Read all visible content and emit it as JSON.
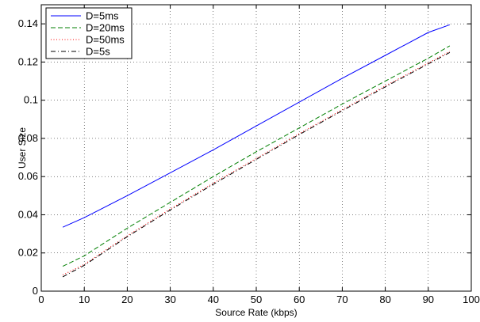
{
  "chart_data": {
    "type": "line",
    "xlabel": "Source Rate (kbps)",
    "ylabel": "User Size",
    "xlim": [
      0,
      100
    ],
    "ylim": [
      0,
      0.15
    ],
    "xticks": [
      0,
      10,
      20,
      30,
      40,
      50,
      60,
      70,
      80,
      90,
      100
    ],
    "xtick_labels": [
      "0",
      "10",
      "20",
      "30",
      "40",
      "50",
      "60",
      "70",
      "80",
      "90",
      "100"
    ],
    "yticks": [
      0,
      0.02,
      0.04,
      0.06,
      0.08,
      0.1,
      0.12,
      0.14
    ],
    "ytick_labels": [
      "0",
      "0.02",
      "0.04",
      "0.06",
      "0.08",
      "0.1",
      "0.12",
      "0.14"
    ],
    "grid": true,
    "grid_style": "dotted",
    "legend_position": "top-left",
    "x": [
      5,
      10,
      20,
      30,
      40,
      50,
      60,
      70,
      80,
      90,
      95
    ],
    "series": [
      {
        "name": "D=5ms",
        "color": "#0000ff",
        "dash": "solid",
        "values": [
          0.0335,
          0.0385,
          0.05,
          0.062,
          0.074,
          0.0865,
          0.099,
          0.1115,
          0.1235,
          0.1355,
          0.1395
        ]
      },
      {
        "name": "D=20ms",
        "color": "#007f00",
        "dash": "dashed",
        "values": [
          0.013,
          0.0185,
          0.033,
          0.0465,
          0.06,
          0.073,
          0.0855,
          0.098,
          0.11,
          0.122,
          0.1285
        ]
      },
      {
        "name": "D=50ms",
        "color": "#ff0000",
        "dash": "dotted",
        "values": [
          0.0085,
          0.014,
          0.029,
          0.043,
          0.0565,
          0.0695,
          0.0825,
          0.095,
          0.1075,
          0.1195,
          0.1255
        ]
      },
      {
        "name": "D=5s",
        "color": "#000000",
        "dash": "dashdot",
        "values": [
          0.0075,
          0.0135,
          0.0285,
          0.0425,
          0.056,
          0.069,
          0.082,
          0.0945,
          0.107,
          0.119,
          0.125
        ]
      }
    ]
  }
}
